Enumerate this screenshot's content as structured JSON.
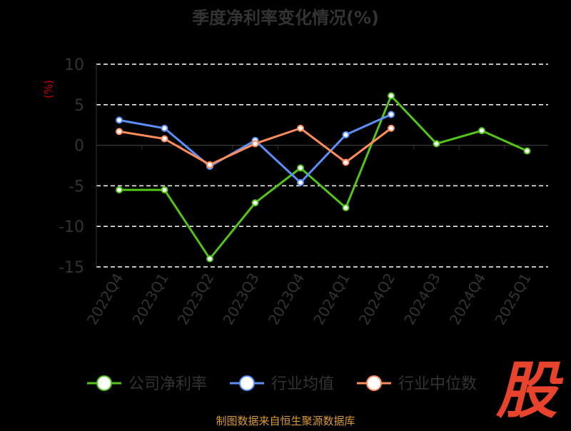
{
  "chart_data": {
    "type": "line",
    "title": "季度净利率变化情况(%)",
    "ylabel": "(%)",
    "ylim": [
      -15,
      10
    ],
    "yticks": [
      10,
      5,
      0,
      -5,
      -10,
      -15
    ],
    "grid": true,
    "legend_position": "bottom",
    "categories": [
      "2022Q4",
      "2023Q1",
      "2023Q2",
      "2023Q3",
      "2023Q4",
      "2024Q1",
      "2024Q2",
      "2024Q3",
      "2024Q4",
      "2025Q1"
    ],
    "series": [
      {
        "name": "公司净利率",
        "color": "#52c41a",
        "values": [
          -5.5,
          -5.5,
          -14.0,
          -7.1,
          -2.8,
          -7.7,
          6.1,
          0.2,
          1.8,
          -0.7
        ]
      },
      {
        "name": "行业均值",
        "color": "#5b8ff9",
        "values": [
          3.1,
          2.1,
          -2.6,
          0.6,
          -4.6,
          1.3,
          3.8,
          null,
          null,
          null
        ]
      },
      {
        "name": "行业中位数",
        "color": "#ff8c5a",
        "values": [
          1.7,
          0.8,
          -2.4,
          0.2,
          2.1,
          -2.1,
          2.1,
          null,
          null,
          null
        ]
      }
    ]
  },
  "watermark": "股",
  "source": "制图数据来自恒生聚源数据库",
  "colors": {
    "background": "#000000",
    "axis_text": "#333333",
    "ylabel": "#cc0000",
    "grid": "#ffffff",
    "source": "#d99a3a",
    "watermark": "#e8432c"
  }
}
